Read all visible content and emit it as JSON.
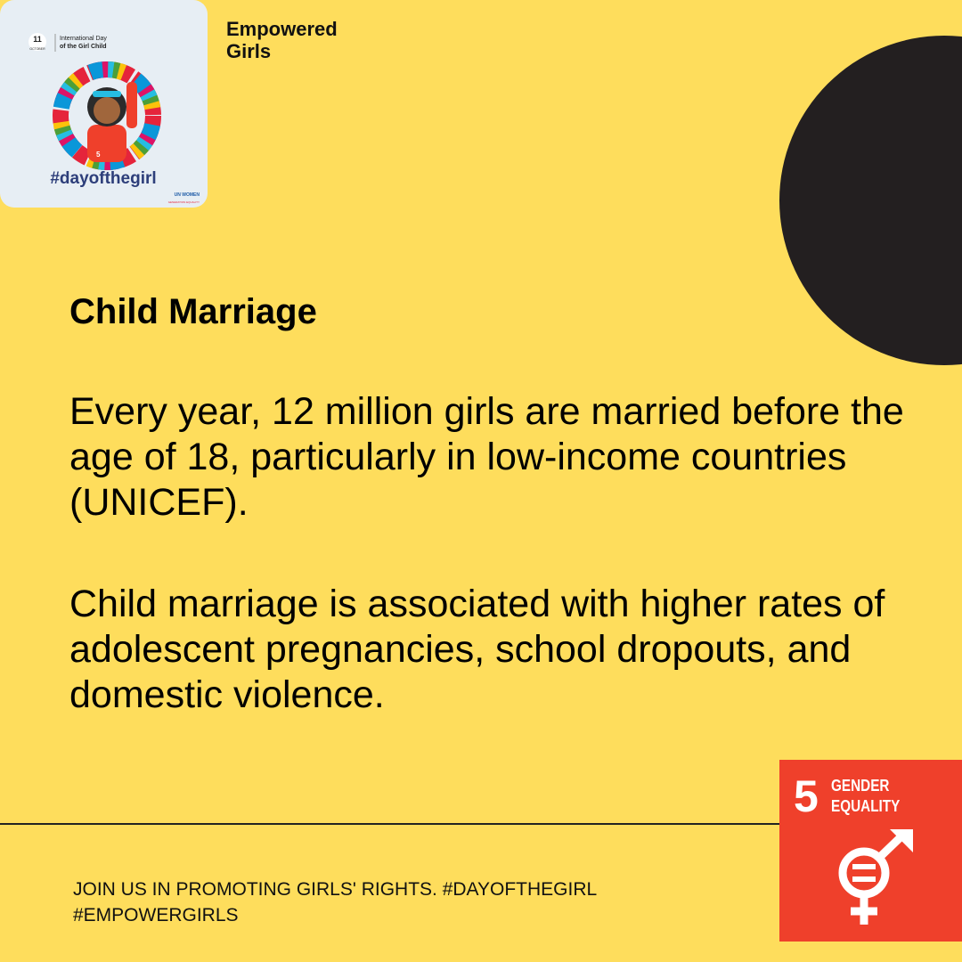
{
  "brand": {
    "line1": "Empowered",
    "line2": "Girls"
  },
  "logo": {
    "day": "11",
    "month": "OCTOBER",
    "event_line1": "International Day",
    "event_line2": "of the Girl Child",
    "shirt_number": "5",
    "hashtag": "#dayofthegirl",
    "org": "UN WOMEN",
    "org_sub": "GENERATION EQUALITY"
  },
  "title": "Child Marriage",
  "paragraphs": [
    "Every year, 12 million girls are married before the age of 18, particularly in low-income countries (UNICEF).",
    "Child marriage is associated with higher rates of adolescent pregnancies, school dropouts, and domestic violence."
  ],
  "footer": {
    "line1": "JOIN US IN PROMOTING GIRLS' RIGHTS. #DAYOFTHEGIRL",
    "line2": "#EMPOWERGIRLS"
  },
  "badge": {
    "number": "5",
    "line1": "GENDER",
    "line2": "EQUALITY"
  }
}
